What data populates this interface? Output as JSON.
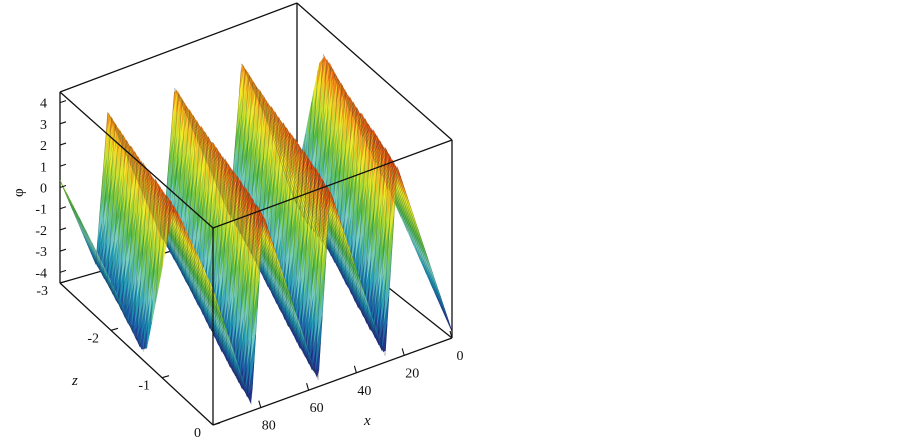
{
  "chart_data": {
    "type": "surface",
    "title": "",
    "xlabel": "x",
    "zlabel": "z",
    "ylabel": "φ",
    "x_ticks": [
      "0",
      "20",
      "40",
      "60",
      "80"
    ],
    "z_ticks": [
      "-3",
      "-2",
      "-1",
      "0"
    ],
    "phi_ticks": [
      "-4",
      "-3",
      "-2",
      "-1",
      "0",
      "1",
      "2",
      "3",
      "4"
    ],
    "x_range": [
      0,
      100
    ],
    "z_range": [
      -3,
      0
    ],
    "phi_range": [
      -4.5,
      4.5
    ],
    "colormap": [
      "#2a0f6a",
      "#1f4fa0",
      "#1e98b4",
      "#7fd0c8",
      "#4fb84a",
      "#a6d63a",
      "#f2ec2a",
      "#f28a1a",
      "#d81e10"
    ],
    "surface": {
      "form": "sawtooth periodic wave traveling along (x + z)",
      "period_in_x": 28,
      "amplitude": 4.2,
      "peak": 4.3,
      "trough": -4.4
    }
  }
}
